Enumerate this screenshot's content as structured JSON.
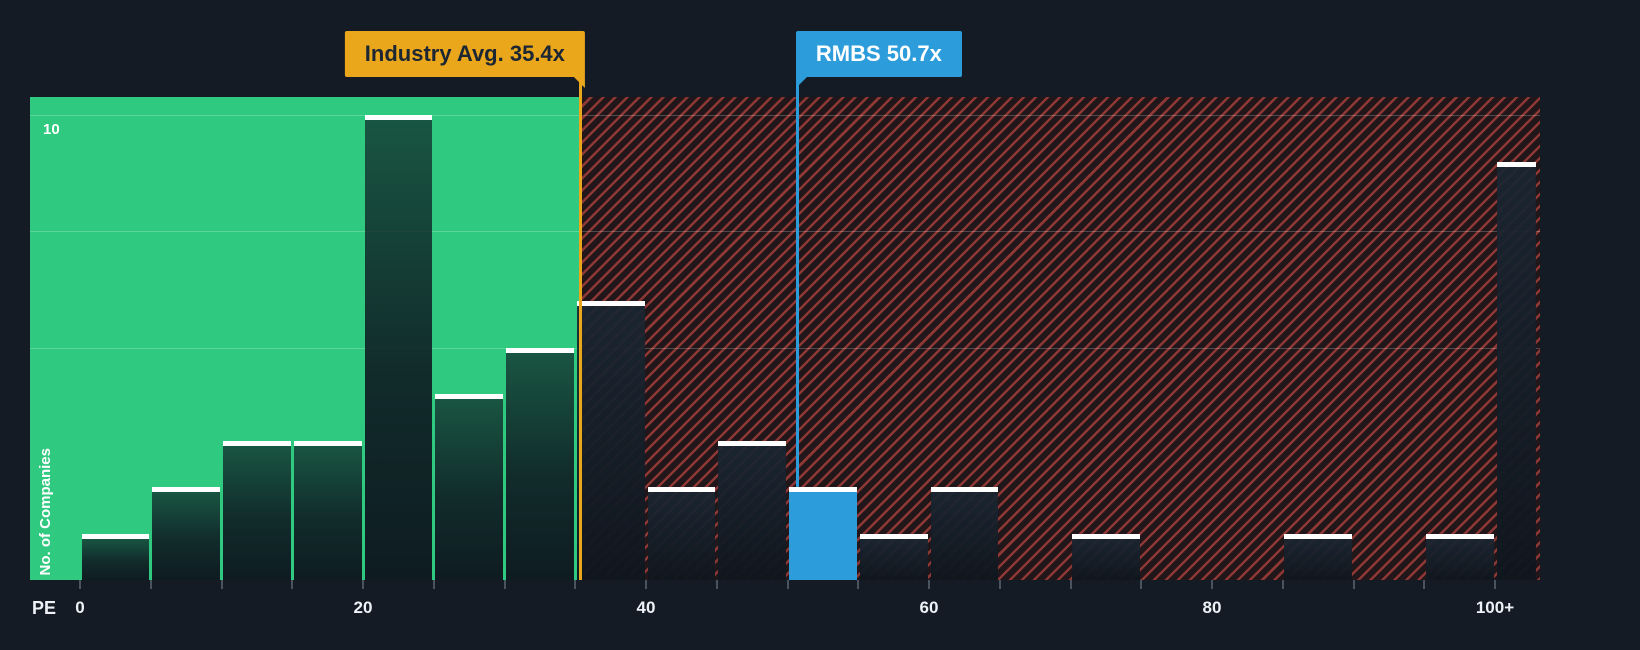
{
  "chart_data": {
    "type": "bar",
    "subtype": "histogram",
    "title": "",
    "xlabel": "PE",
    "ylabel": "No. of Companies",
    "y_tick_label": "10",
    "ylim": [
      0,
      10
    ],
    "xlim": [
      0,
      103
    ],
    "grid_values": [
      10,
      7.5,
      5
    ],
    "x_axis_ticks": [
      {
        "label": "0",
        "value": 0
      },
      {
        "label": "20",
        "value": 20
      },
      {
        "label": "40",
        "value": 40
      },
      {
        "label": "60",
        "value": 60
      },
      {
        "label": "80",
        "value": 80
      },
      {
        "label": "100+",
        "value": 100
      }
    ],
    "bins": [
      {
        "pe_start": 0,
        "pe_end": 5,
        "count": 1,
        "zone": "below_average"
      },
      {
        "pe_start": 5,
        "pe_end": 10,
        "count": 2,
        "zone": "below_average"
      },
      {
        "pe_start": 10,
        "pe_end": 15,
        "count": 3,
        "zone": "below_average"
      },
      {
        "pe_start": 15,
        "pe_end": 20,
        "count": 3,
        "zone": "below_average"
      },
      {
        "pe_start": 20,
        "pe_end": 25,
        "count": 10,
        "zone": "below_average"
      },
      {
        "pe_start": 25,
        "pe_end": 30,
        "count": 4,
        "zone": "below_average"
      },
      {
        "pe_start": 30,
        "pe_end": 35,
        "count": 5,
        "zone": "below_average"
      },
      {
        "pe_start": 35,
        "pe_end": 40,
        "count": 6,
        "zone": "above_average"
      },
      {
        "pe_start": 40,
        "pe_end": 45,
        "count": 2,
        "zone": "above_average"
      },
      {
        "pe_start": 45,
        "pe_end": 50,
        "count": 3,
        "zone": "above_average"
      },
      {
        "pe_start": 50,
        "pe_end": 55,
        "count": 2,
        "zone": "highlight"
      },
      {
        "pe_start": 55,
        "pe_end": 60,
        "count": 1,
        "zone": "above_average"
      },
      {
        "pe_start": 60,
        "pe_end": 65,
        "count": 2,
        "zone": "above_average"
      },
      {
        "pe_start": 70,
        "pe_end": 75,
        "count": 1,
        "zone": "above_average"
      },
      {
        "pe_start": 85,
        "pe_end": 90,
        "count": 1,
        "zone": "above_average"
      },
      {
        "pe_start": 95,
        "pe_end": 100,
        "count": 1,
        "zone": "above_average"
      },
      {
        "pe_start": 100,
        "pe_end": 103,
        "count": 9,
        "zone": "above_average",
        "label": "100+"
      }
    ],
    "markers": [
      {
        "id": "industry-avg",
        "label": "Industry Avg. 35.4x",
        "value": 35.4,
        "color": "#eba71c",
        "text_color": "#1c2733"
      },
      {
        "id": "rmbs",
        "label": "RMBS 50.7x",
        "value": 50.7,
        "color": "#2d9cdb",
        "text_color": "#ffffff"
      }
    ],
    "zones": [
      {
        "id": "below-average",
        "to": 35.4,
        "color": "#2fc97f"
      },
      {
        "id": "above-average",
        "from": 35.4,
        "style": "red-hatch",
        "color": "#e8554d"
      }
    ]
  },
  "colors": {
    "background": "#141b24",
    "bar_cap": "#ffffff",
    "highlight_bar": "#2d9cdb",
    "axis_text": "#eef2f6"
  }
}
